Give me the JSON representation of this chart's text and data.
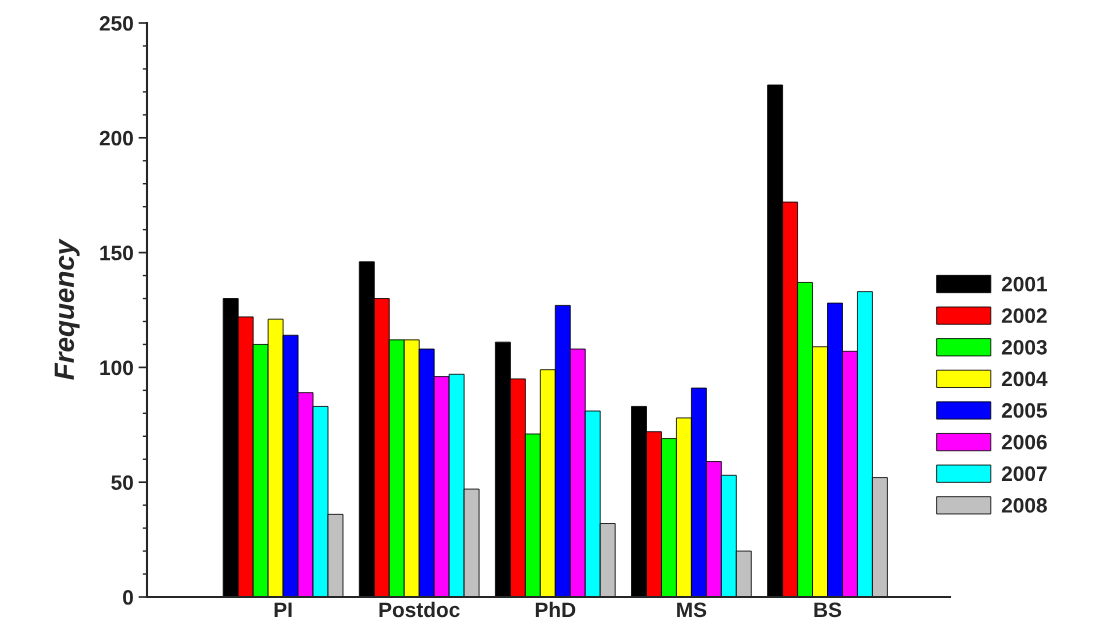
{
  "chart_data": {
    "type": "bar",
    "categories": [
      "PI",
      "Postdoc",
      "PhD",
      "MS",
      "BS"
    ],
    "ylabel": "Frequency",
    "ylim": [
      0,
      250
    ],
    "yticks": [
      0,
      50,
      100,
      150,
      200,
      250
    ],
    "grid": false,
    "legend": "right",
    "series": [
      {
        "name": "2001",
        "color": "#000000",
        "values": [
          130,
          146,
          111,
          83,
          223
        ]
      },
      {
        "name": "2002",
        "color": "#ff0000",
        "values": [
          122,
          130,
          95,
          72,
          172
        ]
      },
      {
        "name": "2003",
        "color": "#00ff00",
        "values": [
          110,
          112,
          71,
          69,
          137
        ]
      },
      {
        "name": "2004",
        "color": "#ffff00",
        "values": [
          121,
          112,
          99,
          78,
          109
        ]
      },
      {
        "name": "2005",
        "color": "#0000ff",
        "values": [
          114,
          108,
          127,
          91,
          128
        ]
      },
      {
        "name": "2006",
        "color": "#ff00ff",
        "values": [
          89,
          96,
          108,
          59,
          107
        ]
      },
      {
        "name": "2007",
        "color": "#00ffff",
        "values": [
          83,
          97,
          81,
          53,
          133
        ]
      },
      {
        "name": "2008",
        "color": "#c0c0c0",
        "values": [
          36,
          47,
          32,
          20,
          52
        ]
      }
    ]
  }
}
